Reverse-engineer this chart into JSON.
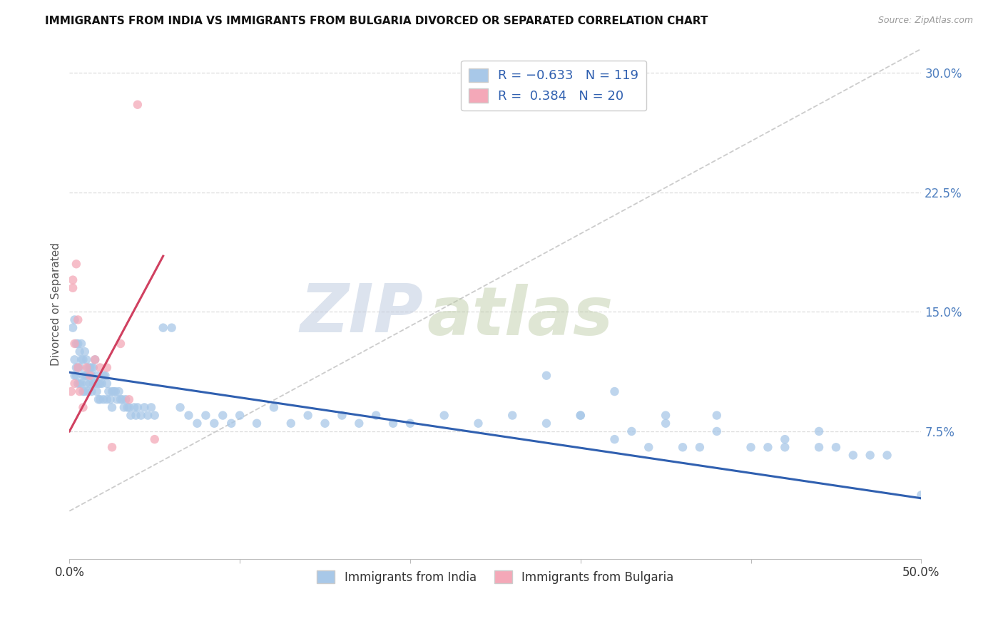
{
  "title": "IMMIGRANTS FROM INDIA VS IMMIGRANTS FROM BULGARIA DIVORCED OR SEPARATED CORRELATION CHART",
  "source": "Source: ZipAtlas.com",
  "ylabel": "Divorced or Separated",
  "ytick_labels": [
    "7.5%",
    "15.0%",
    "22.5%",
    "30.0%"
  ],
  "ytick_values": [
    0.075,
    0.15,
    0.225,
    0.3
  ],
  "xlim": [
    0.0,
    0.5
  ],
  "ylim": [
    -0.005,
    0.315
  ],
  "india_color": "#a8c8e8",
  "bulgaria_color": "#f4a8b8",
  "india_line_color": "#3060b0",
  "bulgaria_line_color": "#d04060",
  "watermark_zip": "ZIP",
  "watermark_atlas": "atlas",
  "india_trend_x": [
    0.0,
    0.5
  ],
  "india_trend_y_start": 0.112,
  "india_trend_y_end": 0.033,
  "bulgaria_trend_x": [
    0.0,
    0.055
  ],
  "bulgaria_trend_y_start": 0.075,
  "bulgaria_trend_y_end": 0.185,
  "dashed_line_x": [
    0.0,
    0.5
  ],
  "dashed_line_y_start": 0.025,
  "dashed_line_y_end": 0.315,
  "india_scatter_x": [
    0.002,
    0.003,
    0.003,
    0.003,
    0.004,
    0.004,
    0.004,
    0.005,
    0.005,
    0.005,
    0.006,
    0.006,
    0.006,
    0.007,
    0.007,
    0.007,
    0.008,
    0.008,
    0.008,
    0.009,
    0.009,
    0.009,
    0.01,
    0.01,
    0.01,
    0.011,
    0.011,
    0.012,
    0.012,
    0.013,
    0.013,
    0.013,
    0.014,
    0.014,
    0.015,
    0.015,
    0.016,
    0.016,
    0.017,
    0.017,
    0.018,
    0.018,
    0.019,
    0.02,
    0.02,
    0.021,
    0.022,
    0.022,
    0.023,
    0.024,
    0.025,
    0.025,
    0.026,
    0.027,
    0.028,
    0.029,
    0.03,
    0.031,
    0.032,
    0.033,
    0.034,
    0.035,
    0.036,
    0.038,
    0.039,
    0.04,
    0.042,
    0.044,
    0.046,
    0.048,
    0.05,
    0.055,
    0.06,
    0.065,
    0.07,
    0.075,
    0.08,
    0.085,
    0.09,
    0.095,
    0.1,
    0.11,
    0.12,
    0.13,
    0.14,
    0.15,
    0.16,
    0.17,
    0.18,
    0.19,
    0.2,
    0.22,
    0.24,
    0.26,
    0.28,
    0.3,
    0.32,
    0.35,
    0.38,
    0.42,
    0.45,
    0.48,
    0.33,
    0.36,
    0.4,
    0.44,
    0.47,
    0.5,
    0.34,
    0.37,
    0.41,
    0.44,
    0.3,
    0.28,
    0.35,
    0.32,
    0.38,
    0.42,
    0.46
  ],
  "india_scatter_y": [
    0.14,
    0.145,
    0.12,
    0.11,
    0.13,
    0.115,
    0.11,
    0.13,
    0.115,
    0.105,
    0.125,
    0.115,
    0.105,
    0.13,
    0.12,
    0.105,
    0.12,
    0.11,
    0.1,
    0.125,
    0.11,
    0.1,
    0.12,
    0.11,
    0.105,
    0.115,
    0.1,
    0.115,
    0.105,
    0.115,
    0.11,
    0.1,
    0.115,
    0.105,
    0.12,
    0.105,
    0.11,
    0.1,
    0.105,
    0.095,
    0.105,
    0.095,
    0.105,
    0.11,
    0.095,
    0.11,
    0.105,
    0.095,
    0.1,
    0.095,
    0.1,
    0.09,
    0.1,
    0.1,
    0.095,
    0.1,
    0.095,
    0.095,
    0.09,
    0.095,
    0.09,
    0.09,
    0.085,
    0.09,
    0.085,
    0.09,
    0.085,
    0.09,
    0.085,
    0.09,
    0.085,
    0.14,
    0.14,
    0.09,
    0.085,
    0.08,
    0.085,
    0.08,
    0.085,
    0.08,
    0.085,
    0.08,
    0.09,
    0.08,
    0.085,
    0.08,
    0.085,
    0.08,
    0.085,
    0.08,
    0.08,
    0.085,
    0.08,
    0.085,
    0.08,
    0.085,
    0.07,
    0.08,
    0.075,
    0.07,
    0.065,
    0.06,
    0.075,
    0.065,
    0.065,
    0.065,
    0.06,
    0.035,
    0.065,
    0.065,
    0.065,
    0.075,
    0.085,
    0.11,
    0.085,
    0.1,
    0.085,
    0.065,
    0.06
  ],
  "bulgaria_scatter_x": [
    0.001,
    0.002,
    0.002,
    0.003,
    0.003,
    0.004,
    0.005,
    0.005,
    0.006,
    0.008,
    0.01,
    0.012,
    0.015,
    0.018,
    0.022,
    0.025,
    0.03,
    0.035,
    0.04,
    0.05
  ],
  "bulgaria_scatter_y": [
    0.1,
    0.17,
    0.165,
    0.13,
    0.105,
    0.18,
    0.145,
    0.115,
    0.1,
    0.09,
    0.115,
    0.11,
    0.12,
    0.115,
    0.115,
    0.065,
    0.13,
    0.095,
    0.28,
    0.07
  ]
}
